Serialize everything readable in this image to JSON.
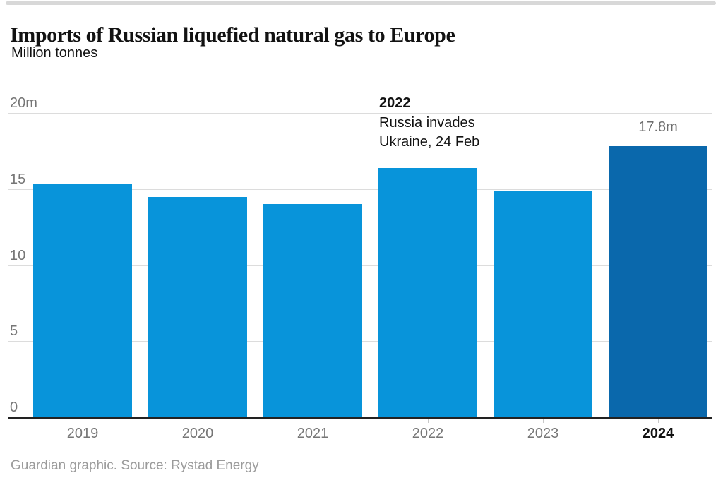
{
  "header": {
    "title": "Imports of Russian liquefied natural gas to Europe",
    "subtitle": "Million tonnes"
  },
  "chart_data": {
    "type": "bar",
    "title": "Imports of Russian liquefied natural gas to Europe",
    "ylabel": "Million tonnes",
    "xlabel": "",
    "categories": [
      "2019",
      "2020",
      "2021",
      "2022",
      "2023",
      "2024"
    ],
    "values": [
      15.3,
      14.5,
      14.0,
      16.4,
      14.9,
      17.8
    ],
    "unit": "million tonnes",
    "ylim": [
      0,
      20
    ],
    "yticks": [
      {
        "value": 0,
        "label": "0"
      },
      {
        "value": 5,
        "label": "5"
      },
      {
        "value": 10,
        "label": "10"
      },
      {
        "value": 15,
        "label": "15"
      },
      {
        "value": 20,
        "label": "20m"
      }
    ],
    "grid": "horizontal",
    "legend": "none",
    "highlight_category": "2024",
    "bar_color": "#0894da",
    "highlight_color": "#0a68ac",
    "gridline_color": "#dcdcdc",
    "baseline_color": "#222222",
    "tick_mark_color": "#c9c9c9",
    "tick_label_color": "#767676",
    "highlight_label_color": "#121212",
    "value_label": {
      "category": "2024",
      "text": "17.8m",
      "color": "#6e6e6e"
    },
    "annotation": {
      "category": "2022",
      "year": "2022",
      "line1": "Russia invades",
      "line2": "Ukraine, 24 Feb"
    }
  },
  "footer": {
    "credit": "Guardian graphic. Source: Rystad Energy"
  }
}
